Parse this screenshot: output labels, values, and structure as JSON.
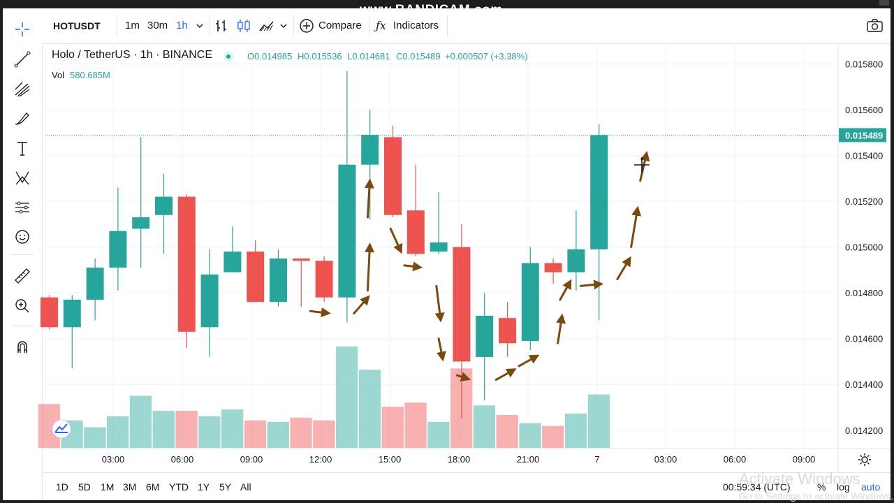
{
  "recording_watermark": "www.BANDICAM.com",
  "toolbar": {
    "symbol": "HOTUSDT",
    "intervals": [
      "1m",
      "30m",
      "1h"
    ],
    "active_interval": "1h",
    "compare_label": "Compare",
    "indicators_label": "Indicators",
    "icons": [
      "bar-chart-icon",
      "candles-icon",
      "area-chart-icon",
      "chevron-down-icon",
      "camera-icon"
    ]
  },
  "sidebar_tools": [
    "crosshair-icon",
    "trend-line-icon",
    "fib-icon",
    "brush-icon",
    "text-icon",
    "pattern-icon",
    "prediction-icon",
    "emoji-icon",
    "ruler-icon",
    "zoom-icon",
    "magnet-icon"
  ],
  "legend": {
    "title": "Holo / TetherUS · 1h · BINANCE",
    "open": "O0.014985",
    "high": "H0.015536",
    "low": "L0.014681",
    "close": "C0.015489",
    "change": "+0.000507 (+3.38%)",
    "vol_label": "Vol",
    "vol_value": "580.685M"
  },
  "price_axis": {
    "labels": [
      "0.015800",
      "0.015600",
      "0.015400",
      "0.015200",
      "0.015000",
      "0.014800",
      "0.014600",
      "0.014400",
      "0.014200"
    ],
    "current_price": "0.015489"
  },
  "time_axis": {
    "labels": [
      "03:00",
      "06:00",
      "09:00",
      "12:00",
      "15:00",
      "18:00",
      "21:00",
      "7",
      "03:00",
      "06:00",
      "09:00"
    ]
  },
  "bottom_bar": {
    "ranges": [
      "1D",
      "5D",
      "1M",
      "3M",
      "6M",
      "YTD",
      "1Y",
      "5Y",
      "All"
    ],
    "clock": "00:59:34 (UTC)",
    "pct": "%",
    "log": "log",
    "auto": "auto"
  },
  "os_overlay": {
    "line1": "Activate Windows",
    "line2": "Go to Settings to activate Windows."
  },
  "colors": {
    "up": "#26a69a",
    "down": "#ef5350",
    "arrow": "#7a4a0c",
    "accent": "#2962ff"
  },
  "chart_data": {
    "type": "candlestick",
    "symbol": "HOTUSDT",
    "interval": "1h",
    "candles": [
      {
        "o": 0.01478,
        "h": 0.01479,
        "l": 0.01464,
        "c": 0.01465
      },
      {
        "o": 0.01465,
        "h": 0.01479,
        "l": 0.01447,
        "c": 0.01477
      },
      {
        "o": 0.01477,
        "h": 0.01495,
        "l": 0.01468,
        "c": 0.01491
      },
      {
        "o": 0.01491,
        "h": 0.01526,
        "l": 0.01481,
        "c": 0.01507
      },
      {
        "o": 0.01508,
        "h": 0.01548,
        "l": 0.01491,
        "c": 0.01513
      },
      {
        "o": 0.01514,
        "h": 0.01532,
        "l": 0.01497,
        "c": 0.01522
      },
      {
        "o": 0.01522,
        "h": 0.01523,
        "l": 0.01456,
        "c": 0.01463
      },
      {
        "o": 0.01465,
        "h": 0.01499,
        "l": 0.01452,
        "c": 0.01488
      },
      {
        "o": 0.01489,
        "h": 0.01509,
        "l": 0.01489,
        "c": 0.01498
      },
      {
        "o": 0.01498,
        "h": 0.01503,
        "l": 0.01476,
        "c": 0.01476
      },
      {
        "o": 0.01476,
        "h": 0.01499,
        "l": 0.01474,
        "c": 0.01495
      },
      {
        "o": 0.01495,
        "h": 0.01495,
        "l": 0.01474,
        "c": 0.01494
      },
      {
        "o": 0.01494,
        "h": 0.01496,
        "l": 0.01476,
        "c": 0.01478
      },
      {
        "o": 0.01478,
        "h": 0.01577,
        "l": 0.01467,
        "c": 0.01536
      },
      {
        "o": 0.01536,
        "h": 0.0156,
        "l": 0.01512,
        "c": 0.01549
      },
      {
        "o": 0.01548,
        "h": 0.01553,
        "l": 0.01513,
        "c": 0.01514
      },
      {
        "o": 0.01516,
        "h": 0.01536,
        "l": 0.01496,
        "c": 0.01497
      },
      {
        "o": 0.01498,
        "h": 0.01524,
        "l": 0.01497,
        "c": 0.01502
      },
      {
        "o": 0.015,
        "h": 0.0151,
        "l": 0.01425,
        "c": 0.0145
      },
      {
        "o": 0.01452,
        "h": 0.0148,
        "l": 0.01433,
        "c": 0.0147
      },
      {
        "o": 0.01469,
        "h": 0.01476,
        "l": 0.01452,
        "c": 0.01458
      },
      {
        "o": 0.01459,
        "h": 0.015,
        "l": 0.01455,
        "c": 0.01493
      },
      {
        "o": 0.01493,
        "h": 0.01495,
        "l": 0.01484,
        "c": 0.01489
      },
      {
        "o": 0.01489,
        "h": 0.01516,
        "l": 0.01481,
        "c": 0.01499
      },
      {
        "o": 0.01499,
        "h": 0.015536,
        "l": 0.014681,
        "c": 0.015489
      }
    ],
    "volume": [
      160,
      100,
      75,
      115,
      190,
      135,
      135,
      115,
      140,
      100,
      95,
      110,
      100,
      370,
      285,
      150,
      165,
      95,
      290,
      155,
      120,
      90,
      80,
      125,
      195
    ],
    "price_range": [
      0.01412,
      0.01589
    ],
    "last_price": 0.015489,
    "annotations": [
      {
        "type": "arrow",
        "from": [
          11.4,
          0.01472
        ],
        "to": [
          12.3,
          0.01471
        ]
      },
      {
        "type": "arrow",
        "from": [
          13.3,
          0.01471
        ],
        "to": [
          14.0,
          0.01479
        ]
      },
      {
        "type": "arrow",
        "from": [
          13.9,
          0.01481
        ],
        "to": [
          14.0,
          0.01502
        ]
      },
      {
        "type": "arrow",
        "from": [
          13.9,
          0.01513
        ],
        "to": [
          14.0,
          0.0153
        ]
      },
      {
        "type": "arrow",
        "from": [
          14.9,
          0.01508
        ],
        "to": [
          15.4,
          0.01497
        ]
      },
      {
        "type": "arrow",
        "from": [
          15.5,
          0.01492
        ],
        "to": [
          16.3,
          0.01491
        ]
      },
      {
        "type": "arrow",
        "from": [
          16.9,
          0.01483
        ],
        "to": [
          17.1,
          0.01467
        ]
      },
      {
        "type": "arrow",
        "from": [
          17.0,
          0.0146
        ],
        "to": [
          17.2,
          0.0145
        ]
      },
      {
        "type": "arrow",
        "from": [
          17.8,
          0.01444
        ],
        "to": [
          18.4,
          0.01442
        ]
      },
      {
        "type": "arrow",
        "from": [
          19.5,
          0.01442
        ],
        "to": [
          20.4,
          0.01447
        ]
      },
      {
        "type": "arrow",
        "from": [
          20.5,
          0.01448
        ],
        "to": [
          21.4,
          0.01453
        ]
      },
      {
        "type": "arrow",
        "from": [
          22.2,
          0.01458
        ],
        "to": [
          22.4,
          0.01471
        ]
      },
      {
        "type": "arrow",
        "from": [
          22.3,
          0.01477
        ],
        "to": [
          22.8,
          0.01486
        ]
      },
      {
        "type": "arrow",
        "from": [
          23.2,
          0.01483
        ],
        "to": [
          24.2,
          0.01484
        ]
      },
      {
        "type": "arrow",
        "from": [
          24.8,
          0.01486
        ],
        "to": [
          25.4,
          0.01496
        ]
      },
      {
        "type": "arrow",
        "from": [
          25.4,
          0.015
        ],
        "to": [
          25.7,
          0.01518
        ]
      },
      {
        "type": "arrow",
        "from": [
          25.8,
          0.01529
        ],
        "to": [
          26.1,
          0.01542
        ]
      }
    ]
  }
}
